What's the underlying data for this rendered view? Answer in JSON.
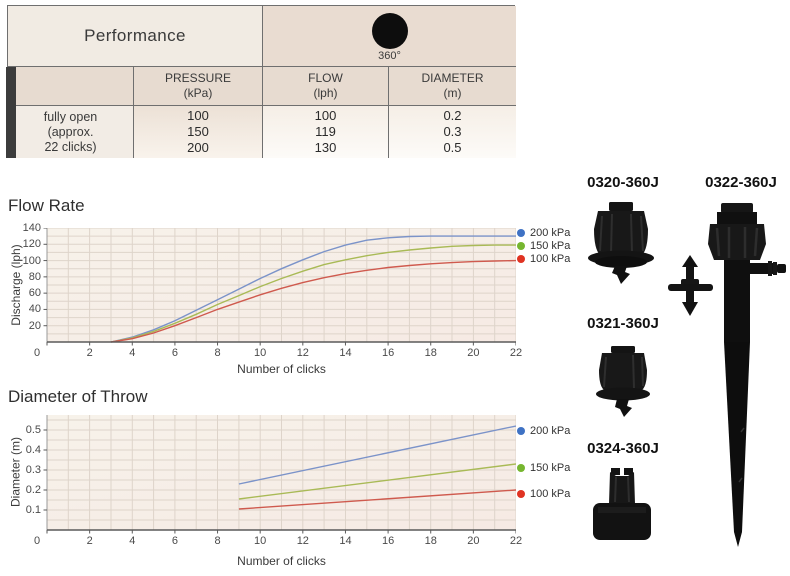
{
  "table": {
    "title": "Performance",
    "pattern_angle": "360°",
    "columns": [
      {
        "title": "PRESSURE",
        "unit": "(kPa)"
      },
      {
        "title": "FLOW",
        "unit": "(lph)"
      },
      {
        "title": "DIAMETER",
        "unit": "(m)"
      }
    ],
    "row_label": "fully open\n(approx.\n22 clicks)",
    "pressure_values": "100\n150\n200",
    "flow_values": "100\n119\n130",
    "diameter_values": "0.2\n0.3\n0.5"
  },
  "chart_data": [
    {
      "type": "line",
      "title": "Flow Rate",
      "xlabel": "Number of clicks",
      "ylabel": "Discharge (lph)",
      "xlim": [
        0,
        22
      ],
      "ylim": [
        0,
        140
      ],
      "xticks": [
        0,
        2,
        4,
        6,
        8,
        10,
        12,
        14,
        16,
        18,
        20,
        22
      ],
      "yticks": [
        20,
        40,
        60,
        80,
        100,
        120,
        140
      ],
      "ytick_decimals": 0,
      "grid_x": 1,
      "grid_y": 10,
      "grid": true,
      "legend_position": "right",
      "series": [
        {
          "name": "200 kPa",
          "color": "#7b93c9",
          "dot": "#3f72c4",
          "points": [
            [
              3,
              0
            ],
            [
              4,
              6
            ],
            [
              5,
              15
            ],
            [
              6,
              26
            ],
            [
              7,
              39
            ],
            [
              8,
              52
            ],
            [
              9,
              65
            ],
            [
              10,
              78
            ],
            [
              11,
              90
            ],
            [
              12,
              101
            ],
            [
              13,
              111
            ],
            [
              14,
              119
            ],
            [
              15,
              125
            ],
            [
              16,
              128
            ],
            [
              17,
              129.5
            ],
            [
              18,
              130
            ],
            [
              19,
              130
            ],
            [
              20,
              130
            ],
            [
              21,
              130
            ],
            [
              22,
              130
            ]
          ]
        },
        {
          "name": "150 kPa",
          "color": "#a9ba56",
          "dot": "#76b62f",
          "points": [
            [
              3,
              0
            ],
            [
              4,
              5
            ],
            [
              5,
              13
            ],
            [
              6,
              23
            ],
            [
              7,
              34
            ],
            [
              8,
              46
            ],
            [
              9,
              57
            ],
            [
              10,
              68
            ],
            [
              11,
              78
            ],
            [
              12,
              87
            ],
            [
              13,
              95
            ],
            [
              14,
              101
            ],
            [
              15,
              106
            ],
            [
              16,
              110
            ],
            [
              17,
              113
            ],
            [
              18,
              115.5
            ],
            [
              19,
              117.5
            ],
            [
              20,
              118.5
            ],
            [
              21,
              119
            ],
            [
              22,
              119
            ]
          ]
        },
        {
          "name": "100 kPa",
          "color": "#cf5a4e",
          "dot": "#e03322",
          "points": [
            [
              3,
              0
            ],
            [
              4,
              4
            ],
            [
              5,
              11
            ],
            [
              6,
              20
            ],
            [
              7,
              30
            ],
            [
              8,
              40
            ],
            [
              9,
              49
            ],
            [
              10,
              58
            ],
            [
              11,
              66
            ],
            [
              12,
              73
            ],
            [
              13,
              79
            ],
            [
              14,
              84
            ],
            [
              15,
              88
            ],
            [
              16,
              91.5
            ],
            [
              17,
              94
            ],
            [
              18,
              96
            ],
            [
              19,
              97.5
            ],
            [
              20,
              98.7
            ],
            [
              21,
              99.5
            ],
            [
              22,
              100
            ]
          ]
        }
      ]
    },
    {
      "type": "line",
      "title": "Diameter of Throw",
      "xlabel": "Number of clicks",
      "ylabel": "Diameter (m)",
      "xlim": [
        0,
        22
      ],
      "ylim": [
        0,
        0.575
      ],
      "xticks": [
        0,
        2,
        4,
        6,
        8,
        10,
        12,
        14,
        16,
        18,
        20,
        22
      ],
      "yticks": [
        0.1,
        0.2,
        0.3,
        0.4,
        0.5
      ],
      "ytick_decimals": 1,
      "grid_x": 1,
      "grid_y": 0.05,
      "grid": true,
      "legend_position": "right",
      "series": [
        {
          "name": "200 kPa",
          "color": "#7b93c9",
          "dot": "#3f72c4",
          "points": [
            [
              9,
              0.23
            ],
            [
              22,
              0.52
            ]
          ]
        },
        {
          "name": "150 kPa",
          "color": "#a9ba56",
          "dot": "#76b62f",
          "points": [
            [
              9,
              0.155
            ],
            [
              22,
              0.33
            ]
          ]
        },
        {
          "name": "100 kPa",
          "color": "#cf5a4e",
          "dot": "#e03322",
          "points": [
            [
              9,
              0.105
            ],
            [
              22,
              0.2
            ]
          ]
        }
      ]
    }
  ],
  "products": [
    {
      "code": "0320-360J"
    },
    {
      "code": "0322-360J"
    },
    {
      "code": "0321-360J"
    },
    {
      "code": "0324-360J"
    }
  ]
}
